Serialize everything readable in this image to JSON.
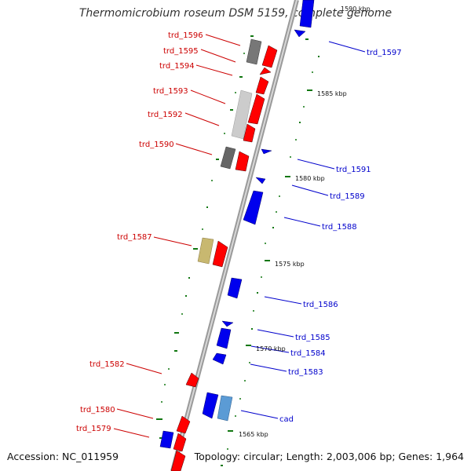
{
  "title": "Thermomicrobium roseum DSM 5159, complete genome",
  "footer": {
    "accession": "Accession: NC_011959",
    "summary": "Topology: circular; Length: 2,003,006 bp; Genes: 1,964"
  },
  "colors": {
    "forward_strand": "#ff0000",
    "reverse_strand": "#0000ee",
    "forward_label": "#cc0000",
    "reverse_label": "#0000cc",
    "backbone": "#999999",
    "tick": "#007700",
    "gray_gene": "#777777",
    "lightgray_gene": "#cccccc",
    "olive_gene": "#c8b870",
    "steel_gene": "#5b9bd5"
  },
  "scale_labels": [
    "1590 kbp",
    "1585 kbp",
    "1580 kbp",
    "1575 kbp",
    "1570 kbp",
    "1565 kbp"
  ],
  "left_labels": [
    "trd_1596",
    "trd_1595",
    "trd_1594",
    "trd_1593",
    "trd_1592",
    "trd_1590",
    "trd_1587",
    "trd_1582",
    "trd_1580",
    "trd_1579"
  ],
  "right_labels": [
    "trd_1597",
    "trd_1591",
    "trd_1589",
    "trd_1588",
    "trd_1586",
    "trd_1585",
    "trd_1584",
    "trd_1583",
    "cad"
  ]
}
